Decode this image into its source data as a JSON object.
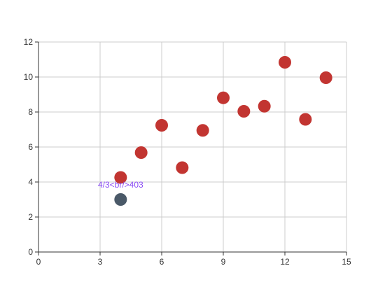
{
  "chart_data": {
    "type": "scatter",
    "title": "",
    "xlabel": "",
    "ylabel": "",
    "xlim": [
      0,
      15
    ],
    "ylim": [
      0,
      12
    ],
    "x_ticks": [
      "0",
      "3",
      "6",
      "9",
      "12",
      "15"
    ],
    "y_ticks": [
      "0",
      "2",
      "4",
      "6",
      "8",
      "10",
      "12"
    ],
    "grid": true,
    "legend": "none",
    "series": [
      {
        "color": "#c23531",
        "points": [
          {
            "x": 4,
            "y": 4.26
          },
          {
            "x": 5,
            "y": 5.68
          },
          {
            "x": 6,
            "y": 7.24
          },
          {
            "x": 7,
            "y": 4.82
          },
          {
            "x": 8,
            "y": 6.95
          },
          {
            "x": 9,
            "y": 8.81
          },
          {
            "x": 10,
            "y": 8.04
          },
          {
            "x": 11,
            "y": 8.33
          },
          {
            "x": 12,
            "y": 10.84
          },
          {
            "x": 13,
            "y": 7.58
          },
          {
            "x": 14,
            "y": 9.96
          }
        ]
      }
    ],
    "highlight": {
      "x": 4,
      "y": 3,
      "color": "#4a5968",
      "label": "4/3<br/>403",
      "label_color": "#8a4cf5"
    }
  }
}
